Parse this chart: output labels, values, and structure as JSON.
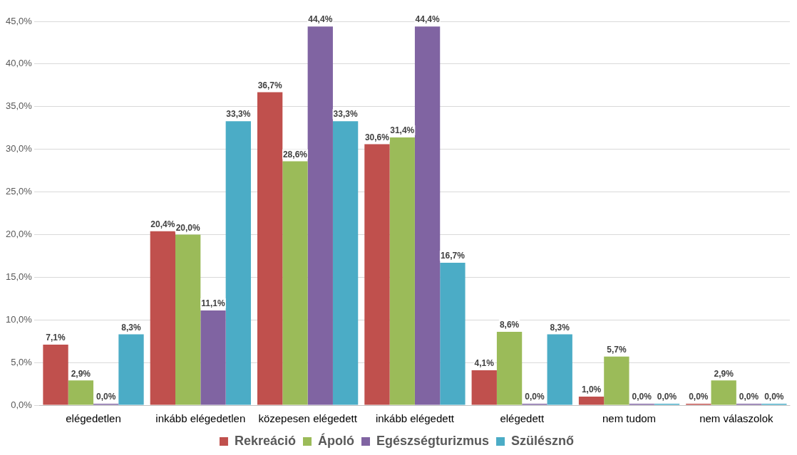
{
  "chart_data": {
    "type": "bar",
    "categories": [
      "elégedetlen",
      "inkább elégedetlen",
      "közepesen elégedett",
      "inkább elégedett",
      "elégedett",
      "nem tudom",
      "nem válaszolok"
    ],
    "series": [
      {
        "name": "Rekreáció",
        "color": "#c0504d",
        "values": [
          7.1,
          20.4,
          36.7,
          30.6,
          4.1,
          1.0,
          0.0
        ],
        "value_labels": [
          "7,1%",
          "20,4%",
          "36,7%",
          "30,6%",
          "4,1%",
          "1,0%",
          "0,0%"
        ]
      },
      {
        "name": "Ápoló",
        "color": "#9bbb59",
        "values": [
          2.9,
          20.0,
          28.6,
          31.4,
          8.6,
          5.7,
          2.9
        ],
        "value_labels": [
          "2,9%",
          "20,0%",
          "28,6%",
          "31,4%",
          "8,6%",
          "5,7%",
          "2,9%"
        ]
      },
      {
        "name": "Egészségturizmus",
        "color": "#8064a2",
        "values": [
          0.0,
          11.1,
          44.4,
          44.4,
          0.0,
          0.0,
          0.0
        ],
        "value_labels": [
          "0,0%",
          "11,1%",
          "44,4%",
          "44,4%",
          "0,0%",
          "0,0%",
          "0,0%"
        ]
      },
      {
        "name": "Szülésznő",
        "color": "#4bacc6",
        "values": [
          8.3,
          33.3,
          33.3,
          16.7,
          8.3,
          0.0,
          0.0
        ],
        "value_labels": [
          "8,3%",
          "33,3%",
          "33,3%",
          "16,7%",
          "8,3%",
          "0,0%",
          "0,0%"
        ]
      }
    ],
    "ylim": [
      0,
      45
    ],
    "yticks": [
      {
        "value": 0,
        "label": "0,0%"
      },
      {
        "value": 5,
        "label": "5,0%"
      },
      {
        "value": 10,
        "label": "10,0%"
      },
      {
        "value": 15,
        "label": "15,0%"
      },
      {
        "value": 20,
        "label": "20,0%"
      },
      {
        "value": 25,
        "label": "25,0%"
      },
      {
        "value": 30,
        "label": "30,0%"
      },
      {
        "value": 35,
        "label": "35,0%"
      },
      {
        "value": 40,
        "label": "40,0%"
      },
      {
        "value": 45,
        "label": "45,0%"
      }
    ],
    "grid": "y",
    "legend": "bottom"
  }
}
